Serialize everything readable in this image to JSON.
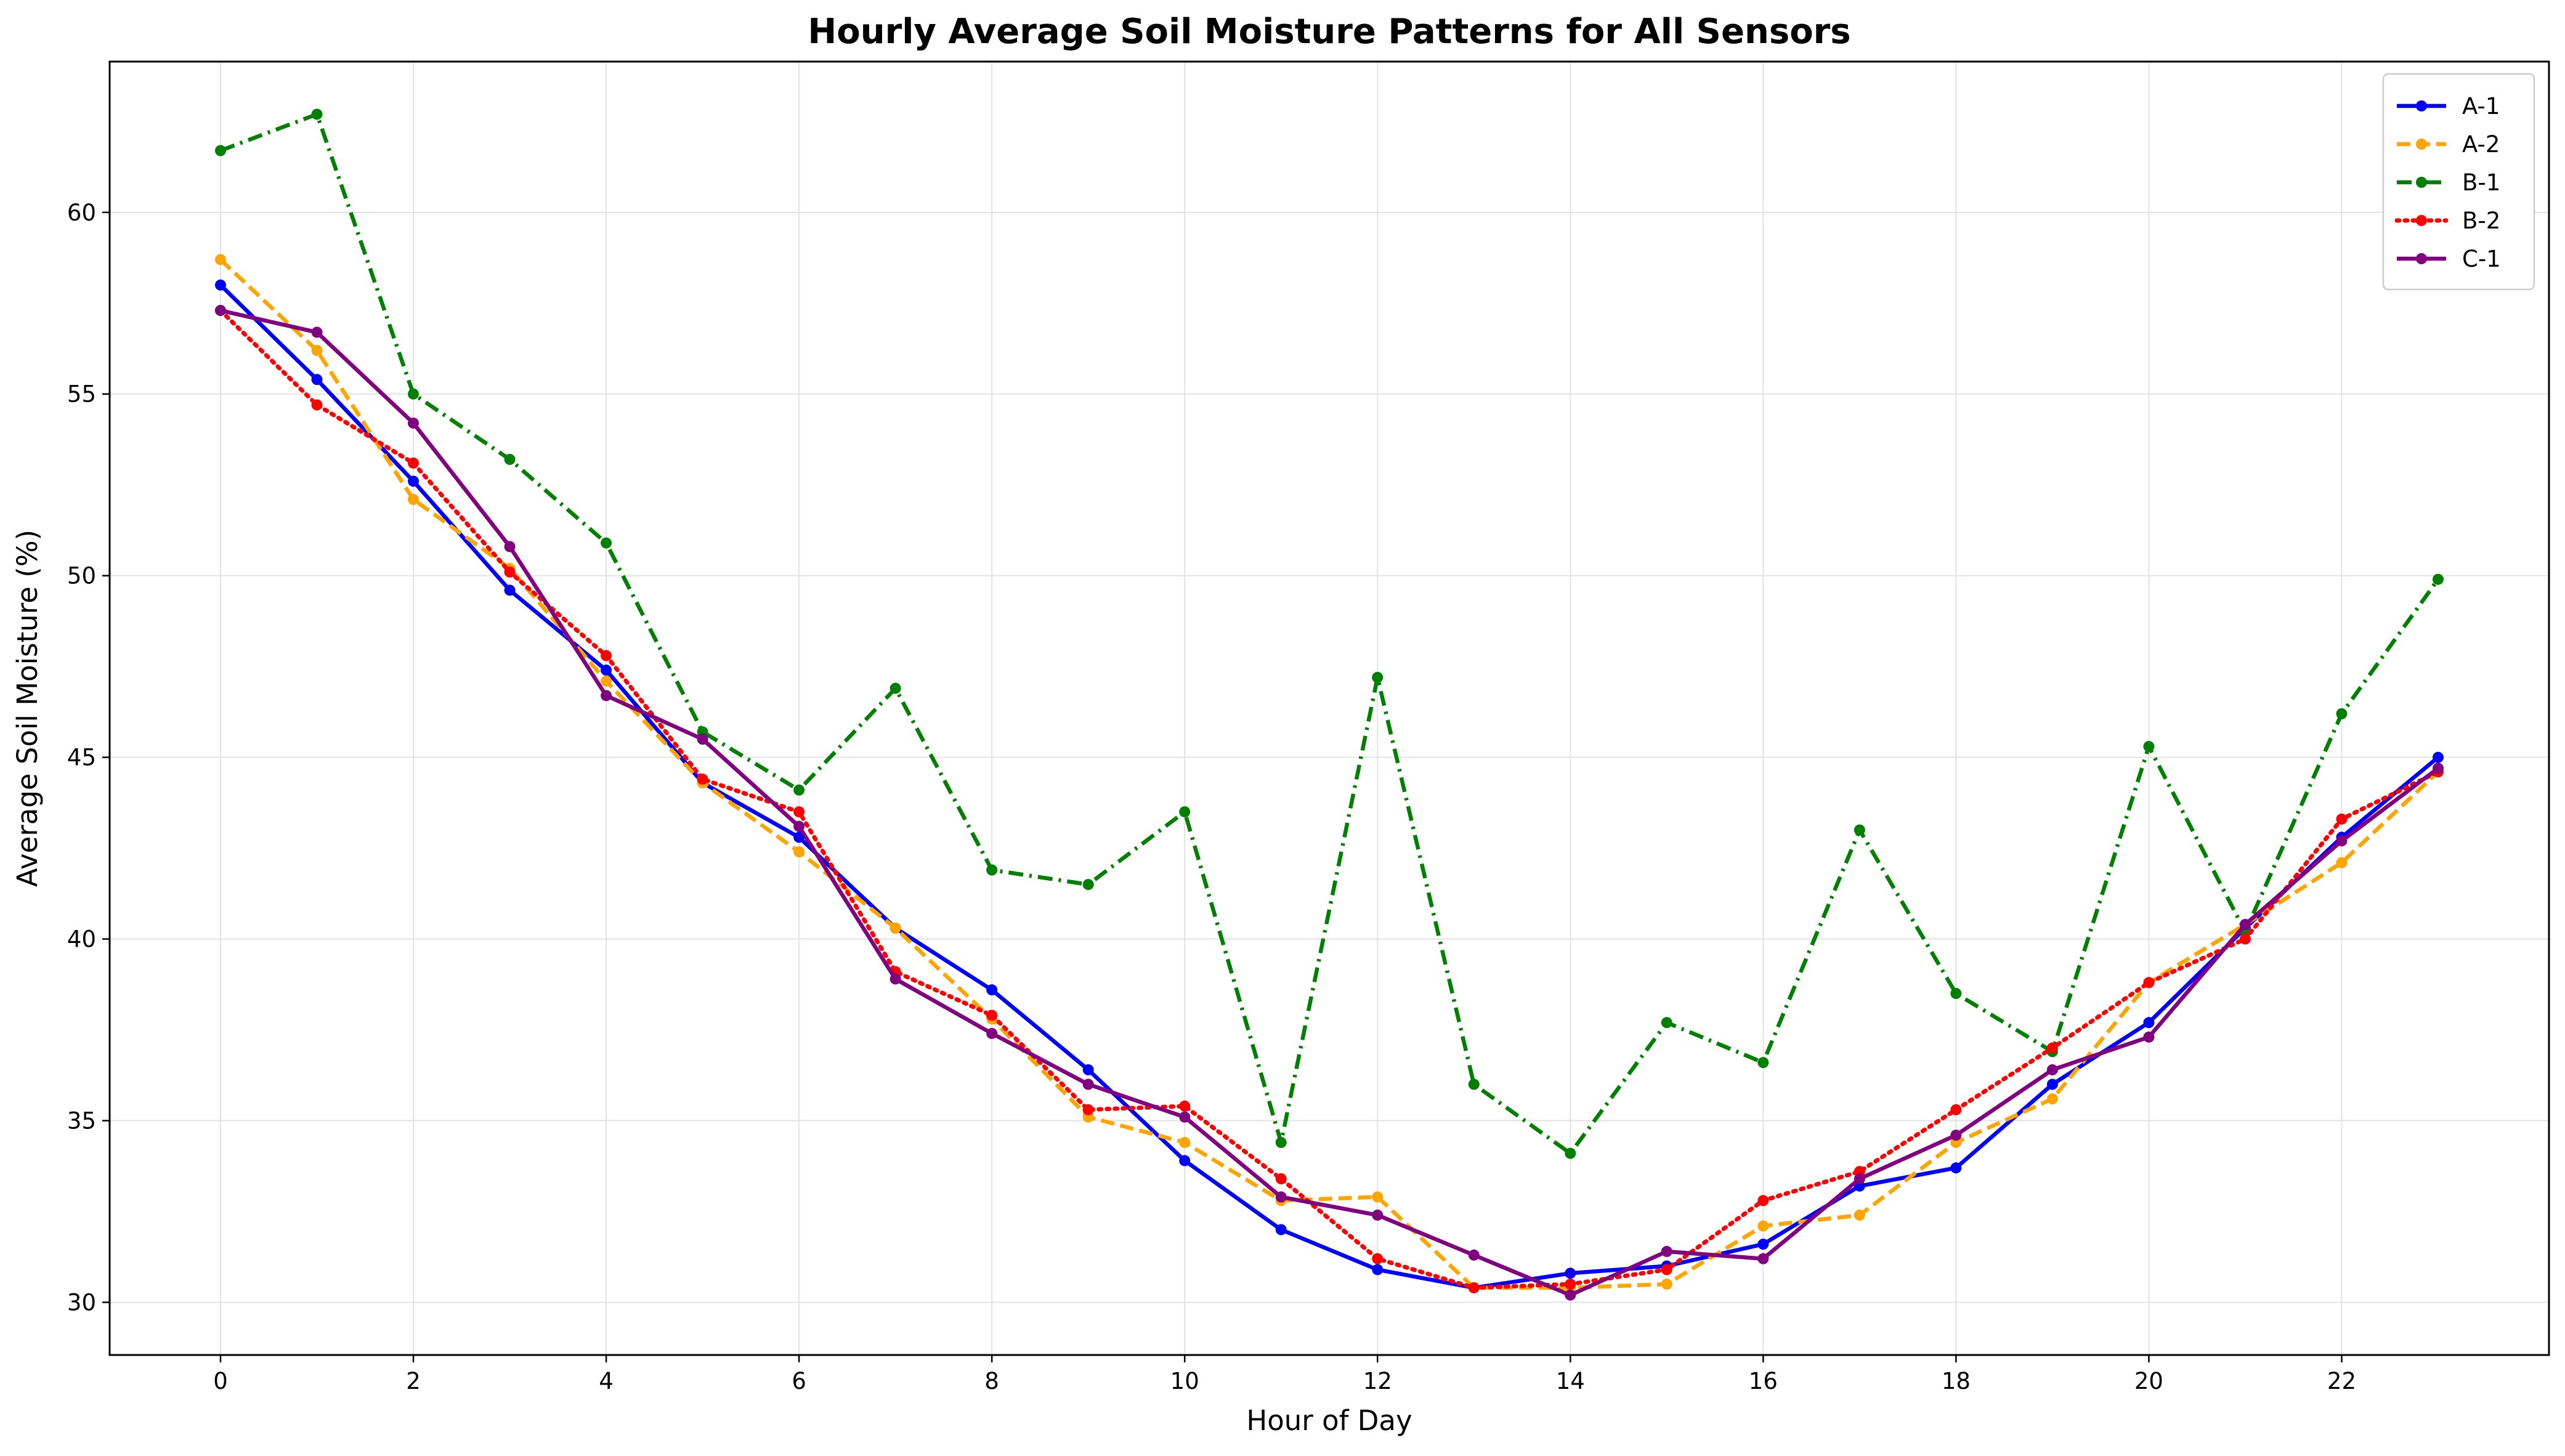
{
  "chart_data": {
    "type": "line",
    "title": "Hourly Average Soil Moisture Patterns for All Sensors",
    "xlabel": "Hour of Day",
    "ylabel": "Average Soil Moisture (%)",
    "x": [
      0,
      1,
      2,
      3,
      4,
      5,
      6,
      7,
      8,
      9,
      10,
      11,
      12,
      13,
      14,
      15,
      16,
      17,
      18,
      19,
      20,
      21,
      22,
      23
    ],
    "xlim": [
      -1.15,
      24.15
    ],
    "ylim": [
      28.55,
      64.15
    ],
    "xticks": [
      0,
      2,
      4,
      6,
      8,
      10,
      12,
      14,
      16,
      18,
      20,
      22
    ],
    "yticks": [
      30,
      35,
      40,
      45,
      50,
      55,
      60
    ],
    "grid": true,
    "legend_position": "top-right",
    "series": [
      {
        "name": "A-1",
        "color": "#0000ff",
        "style": "solid",
        "values": [
          58.0,
          55.4,
          52.6,
          49.6,
          47.4,
          44.3,
          42.8,
          40.3,
          38.6,
          36.4,
          33.9,
          32.0,
          30.9,
          30.4,
          30.8,
          31.0,
          31.6,
          33.2,
          33.7,
          36.0,
          37.7,
          40.3,
          42.8,
          45.0
        ]
      },
      {
        "name": "A-2",
        "color": "#ffa500",
        "style": "dashed",
        "values": [
          58.7,
          56.2,
          52.1,
          50.2,
          47.1,
          44.3,
          42.4,
          40.3,
          37.8,
          35.1,
          34.4,
          32.8,
          32.9,
          30.4,
          30.4,
          30.5,
          32.1,
          32.4,
          34.4,
          35.6,
          38.8,
          40.4,
          42.1,
          44.6
        ]
      },
      {
        "name": "B-1",
        "color": "#008000",
        "style": "dashdot",
        "values": [
          61.7,
          62.7,
          55.0,
          53.2,
          50.9,
          45.7,
          44.1,
          46.9,
          41.9,
          41.5,
          43.5,
          34.4,
          47.2,
          36.0,
          34.1,
          37.7,
          36.6,
          43.0,
          38.5,
          36.9,
          45.3,
          40.2,
          46.2,
          49.9
        ]
      },
      {
        "name": "B-2",
        "color": "#ff0000",
        "style": "dotted",
        "values": [
          57.3,
          54.7,
          53.1,
          50.1,
          47.8,
          44.4,
          43.5,
          39.1,
          37.9,
          35.3,
          35.4,
          33.4,
          31.2,
          30.4,
          30.5,
          30.9,
          32.8,
          33.6,
          35.3,
          37.0,
          38.8,
          40.0,
          43.3,
          44.6
        ]
      },
      {
        "name": "C-1",
        "color": "#800080",
        "style": "solid",
        "values": [
          57.3,
          56.7,
          54.2,
          50.8,
          46.7,
          45.5,
          43.1,
          38.9,
          37.4,
          36.0,
          35.1,
          32.9,
          32.4,
          31.3,
          30.2,
          31.4,
          31.2,
          33.4,
          34.6,
          36.4,
          37.3,
          40.4,
          42.7,
          44.7
        ]
      }
    ]
  }
}
